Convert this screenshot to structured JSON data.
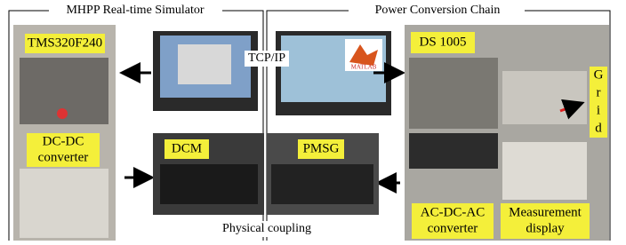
{
  "sections": {
    "left_title": "MHPP Real-time Simulator",
    "right_title": "Power Conversion Chain"
  },
  "labels": {
    "tms": "TMS320F240",
    "dcdc": [
      "DC-DC",
      "converter"
    ],
    "tcpip": "TCP/IP",
    "matlab": "MATLAB",
    "ds1005": "DS 1005",
    "grid": [
      "G",
      "r",
      "i",
      "d"
    ],
    "dcm": "DCM",
    "pmsg": "PMSG",
    "coupling": "Physical coupling",
    "acdcac": [
      "AC-DC-AC",
      "converter"
    ],
    "measurement": [
      "Measurement",
      "display"
    ]
  }
}
